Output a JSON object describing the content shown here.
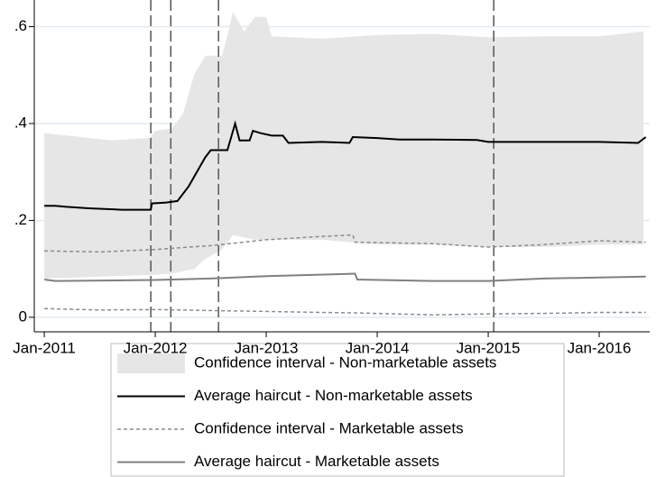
{
  "chart_data": {
    "type": "line",
    "xlim": [
      2010.91,
      2016.455
    ],
    "xticks": [
      {
        "value": 2011,
        "label": "Jan-2011"
      },
      {
        "value": 2012,
        "label": "Jan-2012"
      },
      {
        "value": 2013,
        "label": "Jan-2013"
      },
      {
        "value": 2014,
        "label": "Jan-2014"
      },
      {
        "value": 2015,
        "label": "Jan-2015"
      },
      {
        "value": 2016,
        "label": "Jan-2016"
      }
    ],
    "ylim": [
      -0.03,
      0.655
    ],
    "yticks": [
      0,
      {
        "value": 0.2,
        "label": ".2"
      },
      {
        "value": 0.4,
        "label": ".4"
      },
      {
        "value": 0.6,
        "label": ".6"
      }
    ],
    "grid": true,
    "vlines": [
      2011.96,
      2012.14,
      2012.57,
      2015.05
    ],
    "series": [
      {
        "name": "Confidence interval - Non-marketable assets",
        "kind": "band",
        "color": "#e6e6e6",
        "x": [
          2011.0,
          2011.3,
          2011.6,
          2011.95,
          2012.0,
          2012.15,
          2012.25,
          2012.35,
          2012.45,
          2012.6,
          2012.65,
          2012.7,
          2012.8,
          2012.9,
          2013.0,
          2013.05,
          2013.5,
          2014.0,
          2014.5,
          2015.0,
          2015.5,
          2016.0,
          2016.4
        ],
        "upper": [
          0.38,
          0.373,
          0.365,
          0.37,
          0.385,
          0.39,
          0.42,
          0.5,
          0.54,
          0.54,
          0.58,
          0.63,
          0.59,
          0.62,
          0.62,
          0.58,
          0.575,
          0.583,
          0.585,
          0.578,
          0.58,
          0.58,
          0.59
        ],
        "lower": [
          0.08,
          0.082,
          0.085,
          0.087,
          0.088,
          0.09,
          0.095,
          0.1,
          0.12,
          0.14,
          0.155,
          0.17,
          0.165,
          0.16,
          0.16,
          0.16,
          0.16,
          0.15,
          0.15,
          0.145,
          0.145,
          0.15,
          0.15
        ]
      },
      {
        "name": "Average haircut - Non-marketable assets",
        "kind": "line",
        "color": "#000000",
        "x": [
          2011.0,
          2011.1,
          2011.2,
          2011.4,
          2011.7,
          2011.96,
          2011.97,
          2012.1,
          2012.2,
          2012.3,
          2012.4,
          2012.45,
          2012.5,
          2012.65,
          2012.72,
          2012.76,
          2012.85,
          2012.88,
          2012.95,
          2013.05,
          2013.15,
          2013.2,
          2013.5,
          2013.75,
          2013.78,
          2014.0,
          2014.2,
          2014.5,
          2014.9,
          2015.0,
          2015.5,
          2016.0,
          2016.35,
          2016.42
        ],
        "values": [
          0.23,
          0.23,
          0.228,
          0.225,
          0.222,
          0.222,
          0.235,
          0.237,
          0.24,
          0.27,
          0.31,
          0.33,
          0.345,
          0.345,
          0.4,
          0.365,
          0.365,
          0.385,
          0.38,
          0.375,
          0.375,
          0.36,
          0.362,
          0.36,
          0.372,
          0.37,
          0.367,
          0.367,
          0.366,
          0.362,
          0.362,
          0.362,
          0.36,
          0.372
        ]
      },
      {
        "name": "Confidence interval - Marketable assets",
        "kind": "dashed",
        "color": "#8c8c8c",
        "x": [
          2011.0,
          2011.5,
          2012.0,
          2012.5,
          2013.0,
          2013.5,
          2013.78,
          2013.8,
          2014.5,
          2015.0,
          2015.5,
          2016.0,
          2016.42
        ],
        "upper": [
          0.137,
          0.135,
          0.14,
          0.148,
          0.16,
          0.167,
          0.17,
          0.155,
          0.152,
          0.145,
          0.15,
          0.158,
          0.155
        ],
        "lower": [
          0.018,
          0.015,
          0.016,
          0.014,
          0.012,
          0.01,
          0.009,
          0.009,
          0.005,
          0.007,
          0.008,
          0.01,
          0.01
        ]
      },
      {
        "name": "Average haircut - Marketable assets",
        "kind": "line",
        "color": "#808080",
        "x": [
          2011.0,
          2011.1,
          2012.0,
          2012.5,
          2013.0,
          2013.8,
          2013.82,
          2014.5,
          2015.0,
          2015.5,
          2016.0,
          2016.42
        ],
        "values": [
          0.078,
          0.075,
          0.077,
          0.08,
          0.085,
          0.09,
          0.078,
          0.075,
          0.075,
          0.08,
          0.082,
          0.084
        ]
      }
    ]
  }
}
